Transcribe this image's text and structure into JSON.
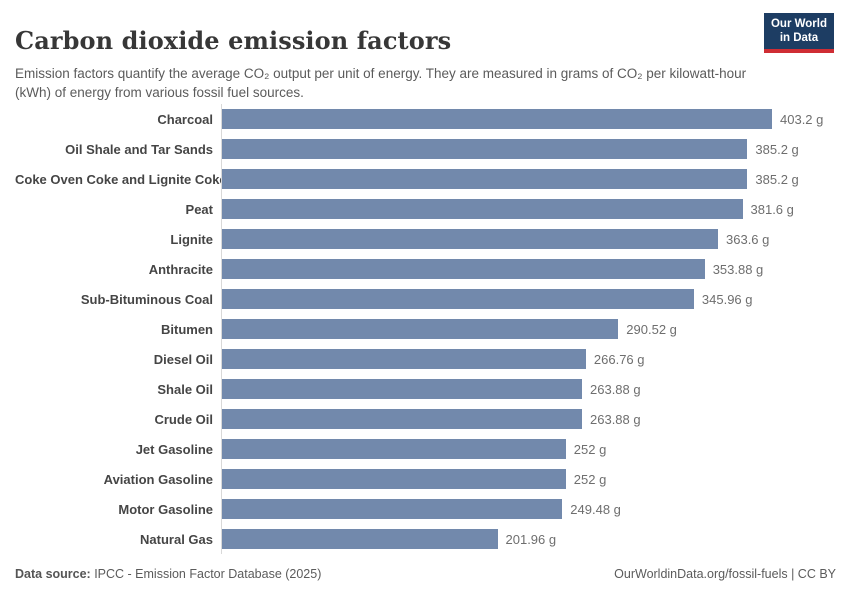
{
  "header": {
    "title": "Carbon dioxide emission factors",
    "subtitle": "Emission factors quantify the average CO₂ output per unit of energy. They are measured in grams of CO₂ per kilowatt-hour (kWh) of energy from various fossil fuel sources.",
    "logo": {
      "line1": "Our World",
      "line2": "in Data"
    }
  },
  "chart_data": {
    "type": "bar",
    "orientation": "horizontal",
    "title": "Carbon dioxide emission factors",
    "xlabel": "",
    "ylabel": "",
    "xlim": [
      0,
      403.2
    ],
    "grid": false,
    "legend": "none",
    "unit": "g",
    "bar_color": "#7289ac",
    "categories": [
      "Charcoal",
      "Oil Shale and Tar Sands",
      "Coke Oven Coke and Lignite Coke",
      "Peat",
      "Lignite",
      "Anthracite",
      "Sub-Bituminous Coal",
      "Bitumen",
      "Diesel Oil",
      "Shale Oil",
      "Crude Oil",
      "Jet Gasoline",
      "Aviation Gasoline",
      "Motor Gasoline",
      "Natural Gas"
    ],
    "values": [
      403.2,
      385.2,
      385.2,
      381.6,
      363.6,
      353.88,
      345.96,
      290.52,
      266.76,
      263.88,
      263.88,
      252,
      252,
      249.48,
      201.96
    ],
    "value_labels": [
      "403.2 g",
      "385.2 g",
      "385.2 g",
      "381.6 g",
      "363.6 g",
      "353.88 g",
      "345.96 g",
      "290.52 g",
      "266.76 g",
      "263.88 g",
      "263.88 g",
      "252 g",
      "252 g",
      "249.48 g",
      "201.96 g"
    ]
  },
  "footer": {
    "datasource_label": "Data source:",
    "datasource_value": " IPCC - Emission Factor Database (2025)",
    "link": "OurWorldinData.org/fossil-fuels | CC BY"
  },
  "colors": {
    "bar": "#7289ac",
    "axis_line": "#d9d9d9",
    "logo_navy": "#1d3d63",
    "logo_red": "#cf2d34",
    "title_text": "#373737",
    "muted_text": "#5b5b5b"
  }
}
